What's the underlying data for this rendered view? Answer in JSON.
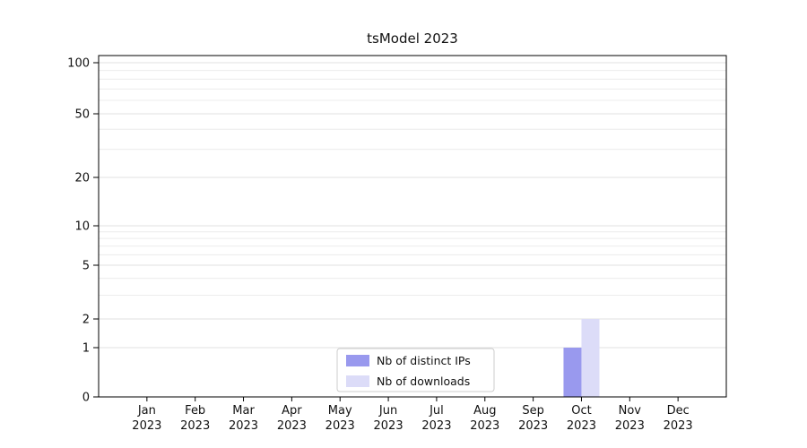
{
  "chart_data": {
    "type": "bar",
    "title": "tsModel 2023",
    "x_tick_months": [
      "Jan",
      "Feb",
      "Mar",
      "Apr",
      "May",
      "Jun",
      "Jul",
      "Aug",
      "Sep",
      "Oct",
      "Nov",
      "Dec"
    ],
    "x_tick_year": "2023",
    "y_ticks": [
      0,
      1,
      2,
      5,
      10,
      20,
      50,
      100
    ],
    "y_minor_gridlines": [
      3,
      4,
      6,
      7,
      8,
      9,
      30,
      40,
      60,
      70,
      80,
      90
    ],
    "yscale": "symlog",
    "ylim": [
      0,
      110
    ],
    "grid": "horizontal",
    "legend": {
      "position": "inside-bottom-center",
      "entries": [
        "Nb of distinct IPs",
        "Nb of downloads"
      ]
    },
    "series": [
      {
        "name": "Nb of distinct IPs",
        "color": "#9999ee",
        "values": [
          0,
          0,
          0,
          0,
          0,
          0,
          0,
          0,
          0,
          1,
          0,
          0
        ]
      },
      {
        "name": "Nb of downloads",
        "color": "#dcdcf8",
        "values": [
          0,
          0,
          0,
          0,
          0,
          0,
          0,
          0,
          0,
          2,
          0,
          0
        ]
      }
    ]
  },
  "colors": {
    "axis": "#000000",
    "grid_major": "#e0e0e0",
    "grid_minor": "#ececec",
    "text": "#111111",
    "legend_border": "#cccccc",
    "background": "#ffffff"
  }
}
